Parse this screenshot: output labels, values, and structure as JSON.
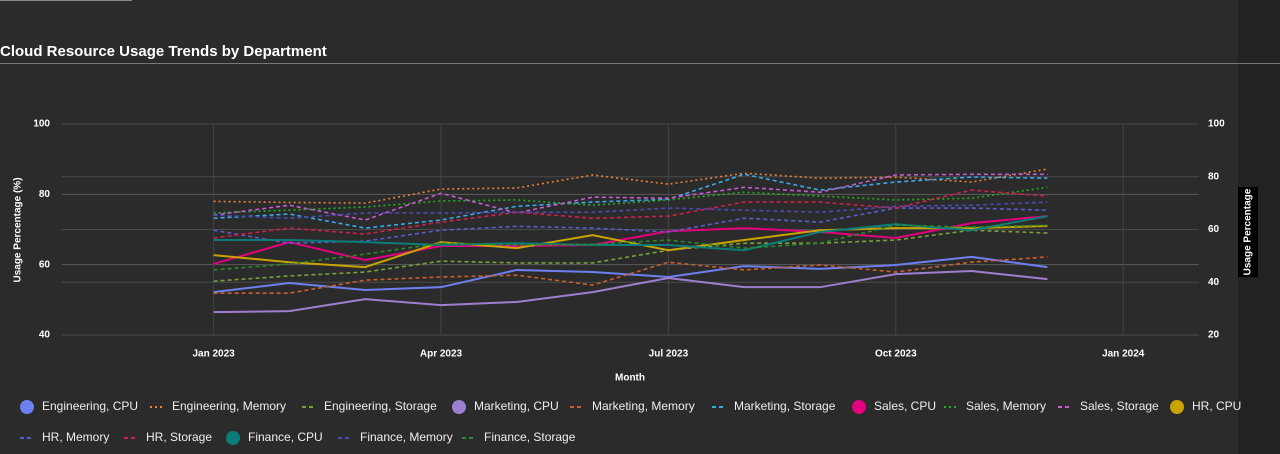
{
  "chart_data": {
    "type": "line",
    "title": "Cloud Resource Usage Trends by Department",
    "xlabel": "Month",
    "ylabel": "Usage Percentage (%)",
    "y2label": "Usage Percentage",
    "x": [
      "2023-01",
      "2023-02",
      "2023-03",
      "2023-04",
      "2023-05",
      "2023-06",
      "2023-07",
      "2023-08",
      "2023-09",
      "2023-10",
      "2023-11",
      "2023-12"
    ],
    "xlim": [
      "2022-11",
      "2024-02"
    ],
    "xticks": [
      {
        "value": "2023-01",
        "label": "Jan 2023"
      },
      {
        "value": "2023-04",
        "label": "Apr 2023"
      },
      {
        "value": "2023-07",
        "label": "Jul 2023"
      },
      {
        "value": "2023-10",
        "label": "Oct 2023"
      },
      {
        "value": "2024-01",
        "label": "Jan 2024"
      }
    ],
    "ylim": [
      40,
      100
    ],
    "yticks": [
      40,
      60,
      80,
      100
    ],
    "y2lim": [
      20,
      100
    ],
    "y2ticks": [
      20,
      40,
      60,
      80,
      100
    ],
    "grid": true,
    "legend": "bottom",
    "series": [
      {
        "name": "Engineering, CPU",
        "color": "#6d80f0",
        "dash": "solid",
        "values": [
          52.2,
          54.8,
          52.8,
          53.6,
          58.5,
          57.9,
          56.5,
          59.6,
          58.8,
          59.9,
          62.2,
          59.3
        ]
      },
      {
        "name": "Engineering, Memory",
        "color": "#e8833a",
        "dash": "dot",
        "values": [
          78,
          77.7,
          77.5,
          81.5,
          81.8,
          85.5,
          82.9,
          86,
          84.6,
          84.9,
          83.5,
          87.2
        ]
      },
      {
        "name": "Engineering, Storage",
        "color": "#7aa03a",
        "dash": "dash",
        "values": [
          55.3,
          56.8,
          57.9,
          61,
          60.5,
          60.5,
          64.1,
          66.1,
          66.1,
          67,
          69.8,
          69
        ]
      },
      {
        "name": "Marketing, CPU",
        "color": "#9e7fcf",
        "dash": "solid",
        "values": [
          46.5,
          46.8,
          50.2,
          48.5,
          49.4,
          52.2,
          56.2,
          53.6,
          53.6,
          57.3,
          58.2,
          55.9
        ]
      },
      {
        "name": "Marketing, Memory",
        "color": "#c9602a",
        "dash": "dash",
        "values": [
          51.9,
          51.9,
          55.6,
          56.5,
          57,
          54.2,
          60.7,
          58.5,
          59.9,
          57.9,
          60.7,
          62.2
        ]
      },
      {
        "name": "Marketing, Storage",
        "color": "#3aa8e8",
        "dash": "dash",
        "values": [
          73.2,
          74.4,
          70.4,
          72.7,
          76.6,
          77.8,
          78.6,
          85.7,
          81.2,
          83.5,
          84.9,
          84.6
        ]
      },
      {
        "name": "Sales, CPU",
        "color": "#e4007c",
        "dash": "solid",
        "values": [
          60.2,
          66.4,
          61.3,
          65.3,
          65.3,
          65.6,
          69.5,
          70.4,
          69.3,
          67.6,
          71.8,
          73.8
        ]
      },
      {
        "name": "Sales, Memory",
        "color": "#22b022",
        "dash": "dot",
        "values": [
          74.7,
          75.5,
          76.4,
          78.1,
          78.4,
          76.9,
          78.4,
          80.6,
          79.5,
          78.4,
          78.9,
          82
        ]
      },
      {
        "name": "Sales, Storage",
        "color": "#c65ad0",
        "dash": "dash",
        "values": [
          74.1,
          76.9,
          72.7,
          80.3,
          74.7,
          79.2,
          78.9,
          82,
          80.6,
          85.5,
          85.7,
          85.7
        ]
      },
      {
        "name": "HR, CPU",
        "color": "#c9a400",
        "dash": "solid",
        "values": [
          62.7,
          60.7,
          59.3,
          66.4,
          64.7,
          68.4,
          64.1,
          67,
          69.8,
          70.4,
          70.4,
          71
        ]
      },
      {
        "name": "HR, Memory",
        "color": "#5b5bd0",
        "dash": "dash",
        "values": [
          69.8,
          66.1,
          66.7,
          69.8,
          70.9,
          70.4,
          69.3,
          73.2,
          72.1,
          76.1,
          76.1,
          75.5
        ]
      },
      {
        "name": "HR, Storage",
        "color": "#d0204a",
        "dash": "dash",
        "values": [
          67.6,
          70.4,
          68.7,
          72.1,
          74.9,
          73.2,
          73.8,
          77.8,
          77.8,
          76.1,
          81.2,
          79.5
        ]
      },
      {
        "name": "Finance, CPU",
        "color": "#0a7d7a",
        "dash": "solid",
        "values": [
          67,
          67,
          66.4,
          65.6,
          66.1,
          65.6,
          65.6,
          64.1,
          69.3,
          71.5,
          69.8,
          73.8
        ]
      },
      {
        "name": "Finance, Memory",
        "color": "#4a4ab0",
        "dash": "dash",
        "values": [
          74.1,
          73.2,
          74.7,
          74.7,
          74.9,
          74.9,
          76.1,
          75.5,
          74.9,
          76.6,
          76.9,
          77.8
        ]
      },
      {
        "name": "Finance, Storage",
        "color": "#2a8a2a",
        "dash": "dash",
        "values": [
          58.5,
          60.2,
          63,
          66.1,
          65.6,
          65.8,
          67,
          64.7,
          66.1,
          71.2,
          70.7,
          71.2
        ]
      }
    ]
  }
}
